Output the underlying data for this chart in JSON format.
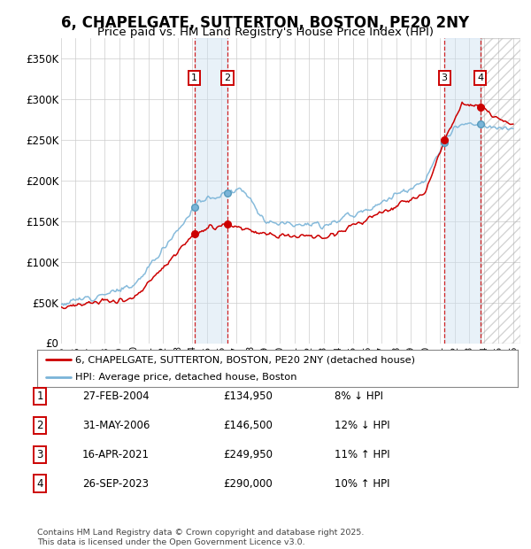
{
  "title": "6, CHAPELGATE, SUTTERTON, BOSTON, PE20 2NY",
  "subtitle": "Price paid vs. HM Land Registry's House Price Index (HPI)",
  "ylabel_ticks": [
    "£0",
    "£50K",
    "£100K",
    "£150K",
    "£200K",
    "£250K",
    "£300K",
    "£350K"
  ],
  "ytick_vals": [
    0,
    50000,
    100000,
    150000,
    200000,
    250000,
    300000,
    350000
  ],
  "ylim": [
    0,
    375000
  ],
  "xlim_start": 1995.0,
  "xlim_end": 2026.5,
  "legend_line1": "6, CHAPELGATE, SUTTERTON, BOSTON, PE20 2NY (detached house)",
  "legend_line2": "HPI: Average price, detached house, Boston",
  "transactions": [
    {
      "num": 1,
      "date": "27-FEB-2004",
      "price": 134950,
      "pct": "8%",
      "dir": "↓",
      "year": 2004.15
    },
    {
      "num": 2,
      "date": "31-MAY-2006",
      "price": 146500,
      "pct": "12%",
      "dir": "↓",
      "year": 2006.42
    },
    {
      "num": 3,
      "date": "16-APR-2021",
      "price": 249950,
      "pct": "11%",
      "dir": "↑",
      "year": 2021.29
    },
    {
      "num": 4,
      "date": "26-SEP-2023",
      "price": 290000,
      "pct": "10%",
      "dir": "↑",
      "year": 2023.75
    }
  ],
  "footnote": "Contains HM Land Registry data © Crown copyright and database right 2025.\nThis data is licensed under the Open Government Licence v3.0.",
  "hpi_color": "#7ab4d8",
  "price_color": "#cc0000",
  "transaction_color": "#cc0000",
  "shade_color": "#cce0f0",
  "background_color": "#ffffff",
  "grid_color": "#cccccc",
  "label_box_color": "#cc0000"
}
